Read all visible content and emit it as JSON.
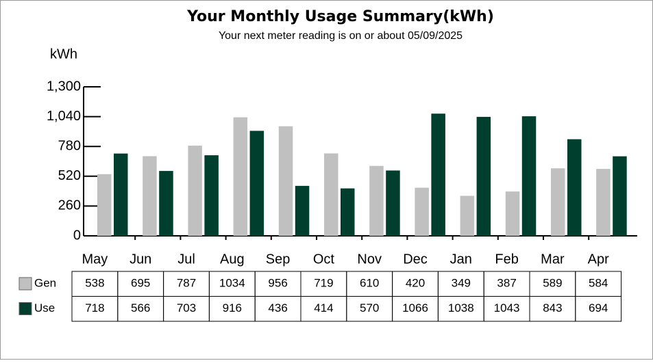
{
  "chart_data": {
    "type": "bar",
    "title": "Your Monthly Usage Summary(kWh)",
    "subtitle": "Your next meter reading is on or about 05/09/2025",
    "y_label": "kWh",
    "categories": [
      "May",
      "Jun",
      "Jul",
      "Aug",
      "Sep",
      "Oct",
      "Nov",
      "Dec",
      "Jan",
      "Feb",
      "Mar",
      "Apr"
    ],
    "series": [
      {
        "name": "Gen",
        "color": "#c0c0c0",
        "values": [
          538,
          695,
          787,
          1034,
          956,
          719,
          610,
          420,
          349,
          387,
          589,
          584
        ]
      },
      {
        "name": "Use",
        "color": "#003f2d",
        "values": [
          718,
          566,
          703,
          916,
          436,
          414,
          570,
          1066,
          1038,
          1043,
          843,
          694
        ]
      }
    ],
    "ylim": [
      0,
      1300
    ],
    "yticks": [
      0,
      260,
      520,
      780,
      {
        "value": 1040,
        "label": "1,040"
      },
      {
        "value": 1300,
        "label": "1,300"
      }
    ]
  }
}
